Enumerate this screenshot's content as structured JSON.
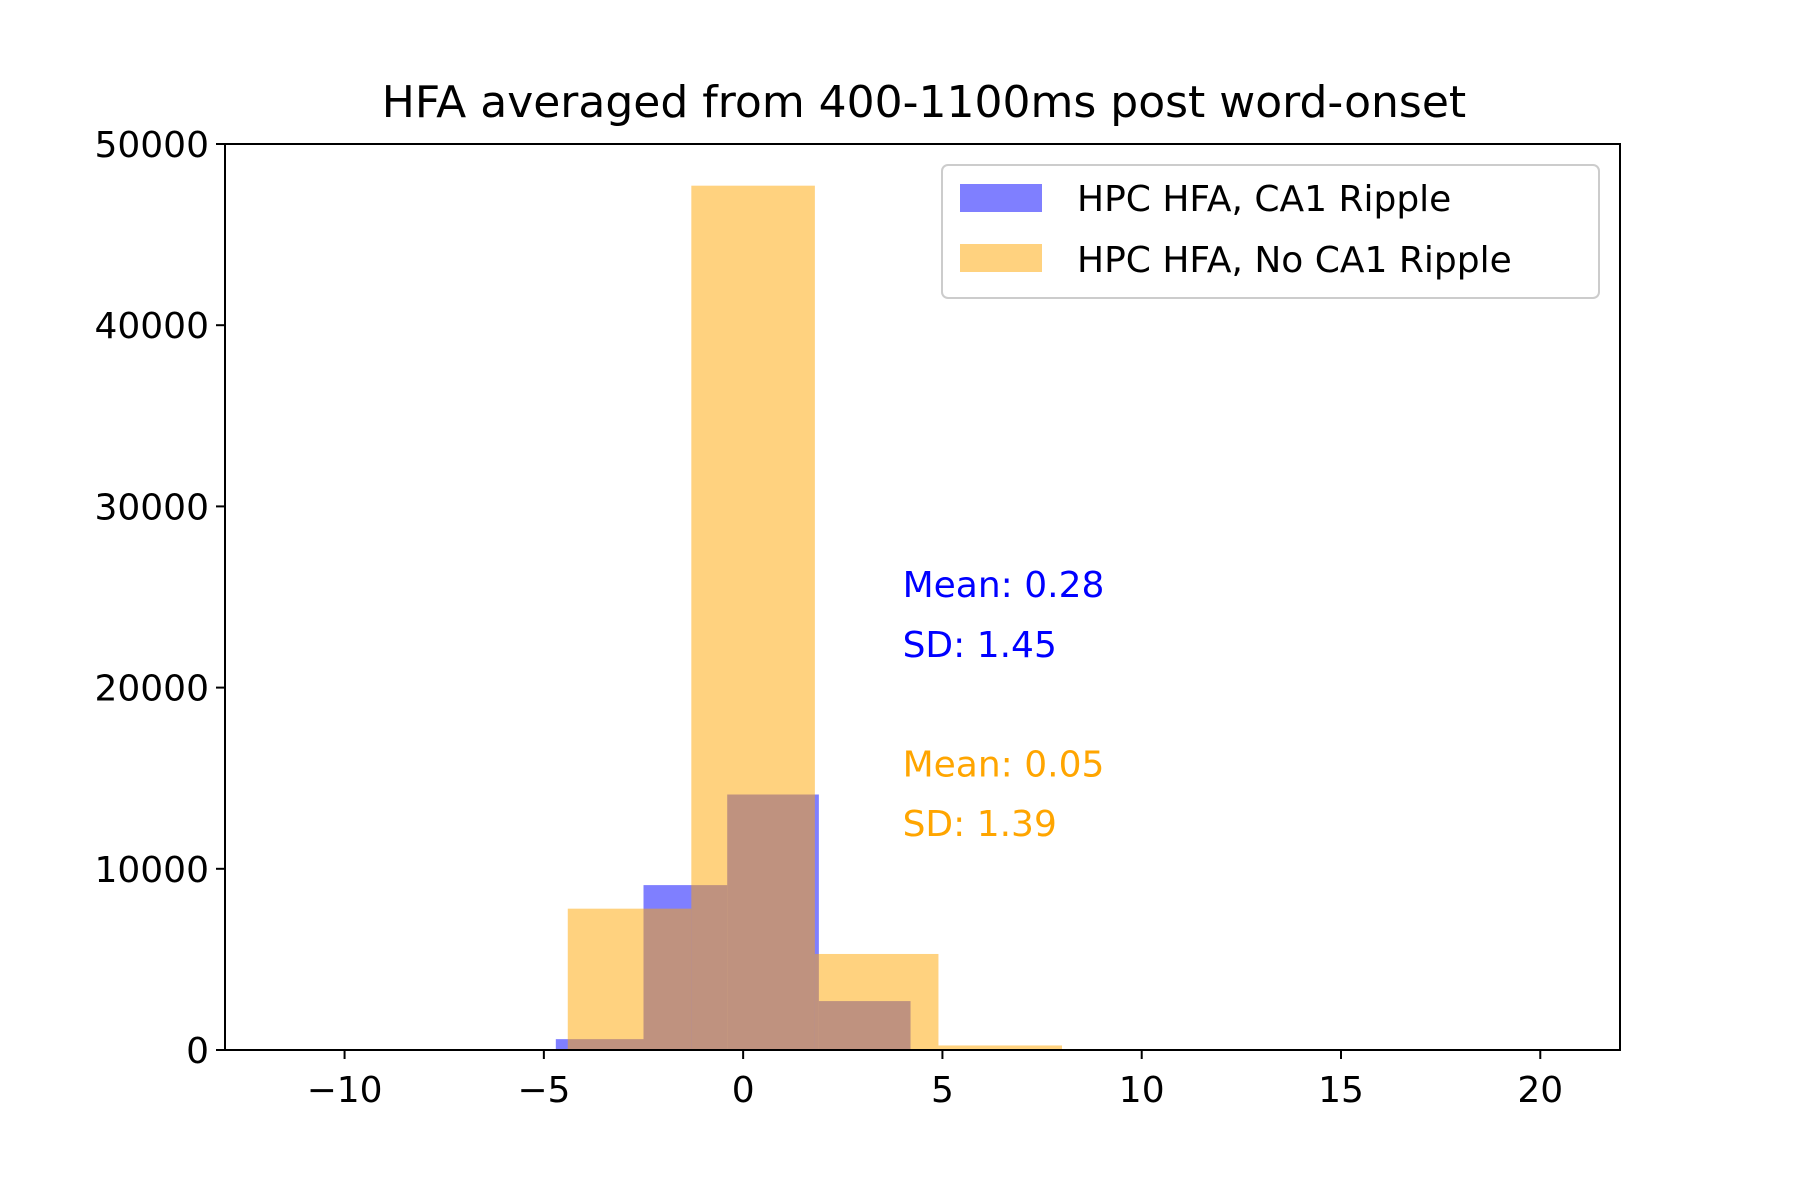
{
  "chart_data": {
    "type": "bar",
    "title": "HFA averaged from 400-1100ms post word-onset",
    "xlabel": "",
    "ylabel": "",
    "xlim": [
      -13,
      22
    ],
    "ylim": [
      0,
      50000
    ],
    "xticks": [
      -10,
      -5,
      0,
      5,
      10,
      15,
      20
    ],
    "xtick_labels": [
      "−10",
      "−5",
      "0",
      "5",
      "10",
      "15",
      "20"
    ],
    "yticks": [
      0,
      10000,
      20000,
      30000,
      40000,
      50000
    ],
    "ytick_labels": [
      "0",
      "10000",
      "20000",
      "30000",
      "40000",
      "50000"
    ],
    "grid": false,
    "legend_position": "top-right",
    "series": [
      {
        "name": "HPC HFA, CA1 Ripple",
        "color": "#0000ff",
        "opacity": 0.5,
        "bin_edges": [
          -4.7,
          -2.5,
          -0.4,
          1.9,
          4.2
        ],
        "values": [
          600,
          9100,
          14100,
          2700
        ]
      },
      {
        "name": "HPC HFA, No CA1 Ripple",
        "color": "#ffa500",
        "opacity": 0.5,
        "bin_edges": [
          -7.5,
          -4.4,
          -1.3,
          1.8,
          4.9,
          8.0
        ],
        "values": [
          50,
          7800,
          47700,
          5300,
          250
        ]
      }
    ],
    "annotations": [
      {
        "text": "Mean: 0.28",
        "color": "#0000ff",
        "x": 4.0,
        "y": 25000
      },
      {
        "text": "SD: 1.45",
        "color": "#0000ff",
        "x": 4.0,
        "y": 21700
      },
      {
        "text": "Mean: 0.05",
        "color": "#ffa500",
        "x": 4.0,
        "y": 15100
      },
      {
        "text": "SD: 1.39",
        "color": "#ffa500",
        "x": 4.0,
        "y": 11800
      }
    ]
  }
}
